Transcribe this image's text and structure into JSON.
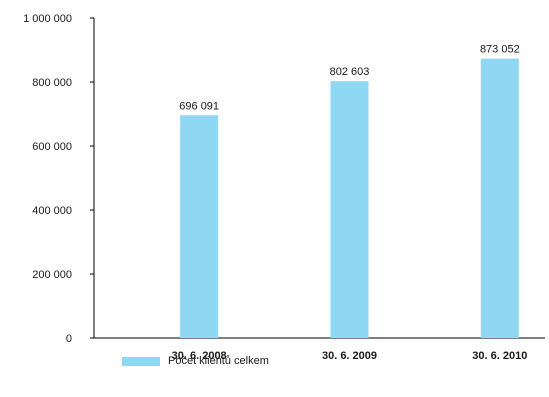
{
  "chart_data": {
    "type": "bar",
    "categories": [
      "30. 6. 2008",
      "30. 6. 2009",
      "30. 6. 2010"
    ],
    "series": [
      {
        "name": "Počet klientů celkem",
        "values": [
          696091,
          802603,
          873052
        ],
        "color": "#8fd8f4"
      }
    ],
    "value_labels": [
      "696 091",
      "802 603",
      "873 052"
    ],
    "ylim": [
      0,
      1000000
    ],
    "yticks": [
      0,
      200000,
      400000,
      600000,
      800000,
      1000000
    ],
    "ytick_labels": [
      "0",
      "200 000",
      "400 000",
      "600 000",
      "800 000",
      "1 000 000"
    ],
    "grid": false,
    "legend_position": "bottom-left",
    "title": "",
    "xlabel": "",
    "ylabel": ""
  }
}
